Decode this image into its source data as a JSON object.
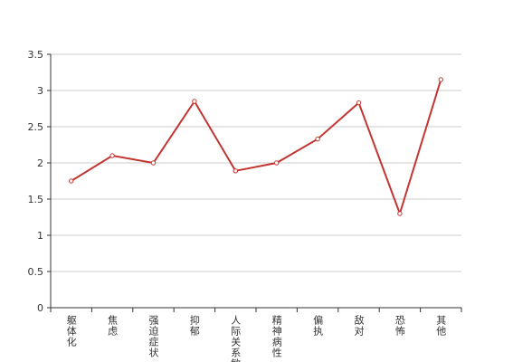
{
  "chart_data": {
    "type": "line",
    "categories": [
      "躯体化",
      "焦虑",
      "强迫症状",
      "抑郁",
      "人际关系敏感",
      "精神病性",
      "偏执",
      "敌对",
      "恐怖",
      "其他"
    ],
    "values": [
      1.75,
      2.1,
      2.0,
      2.85,
      1.89,
      2.0,
      2.33,
      2.83,
      1.3,
      3.15
    ],
    "color": "#c23531",
    "ylim": [
      0,
      3.5
    ],
    "yticks": [
      0,
      0.5,
      1,
      1.5,
      2,
      2.5,
      3,
      3.5
    ],
    "grid": true
  }
}
